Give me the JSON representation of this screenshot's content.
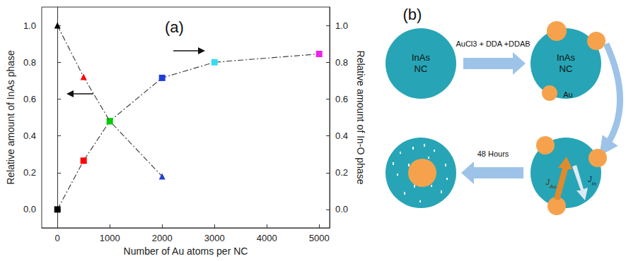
{
  "chart_data": {
    "type": "line",
    "title": "(a)",
    "x_label": "Number of Au atoms per NC",
    "y_label": "Relative amount of InAs phase",
    "y2_label": "Relative amount of In-O phase",
    "xlim": [
      -300,
      5200
    ],
    "xticks": [
      0,
      1000,
      2000,
      3000,
      4000,
      5000
    ],
    "ylim": [
      -0.1,
      1.1
    ],
    "yticks": [
      {
        "value": 0,
        "label": "0.0"
      },
      0.2,
      0.4,
      0.6,
      0.8,
      {
        "value": 1,
        "label": "1.0"
      }
    ],
    "y2lim": [
      -0.1,
      1.1
    ],
    "y2ticks": [
      {
        "value": 0,
        "label": "0.0"
      },
      0.2,
      0.4,
      0.6,
      0.8,
      {
        "value": 1,
        "label": "1.0"
      }
    ],
    "grid": false,
    "series": [
      {
        "x": [
          0,
          500,
          1000,
          2000
        ],
        "values": [
          1.0,
          0.72,
          0.48,
          0.18
        ],
        "colors": [
          "#000000",
          "#ff0000",
          "#00cc00",
          "#1f3fd6"
        ],
        "marker": "triangle",
        "line_style": "dashdot"
      },
      {
        "x": [
          0,
          500,
          1000,
          2000,
          3000,
          5000
        ],
        "values": [
          0.0,
          0.265,
          0.48,
          0.715,
          0.8,
          0.845
        ],
        "colors": [
          "#000000",
          "#ff0000",
          "#00cc00",
          "#1f3fd6",
          "#33ddee",
          "#ee22ee"
        ],
        "marker": "square",
        "line_style": "dashdot",
        "axis": "y2"
      }
    ]
  },
  "diagram": {
    "label": "(b)",
    "core_label": [
      "InAs",
      "NC"
    ],
    "reagents": "AuCl3 + DDA +DDAB",
    "particle_label": "Au",
    "time": "48 Hours",
    "fluxes": [
      {
        "symbol": "J",
        "subscript": "Au"
      },
      {
        "symbol": "J",
        "subscript": "In"
      }
    ]
  }
}
